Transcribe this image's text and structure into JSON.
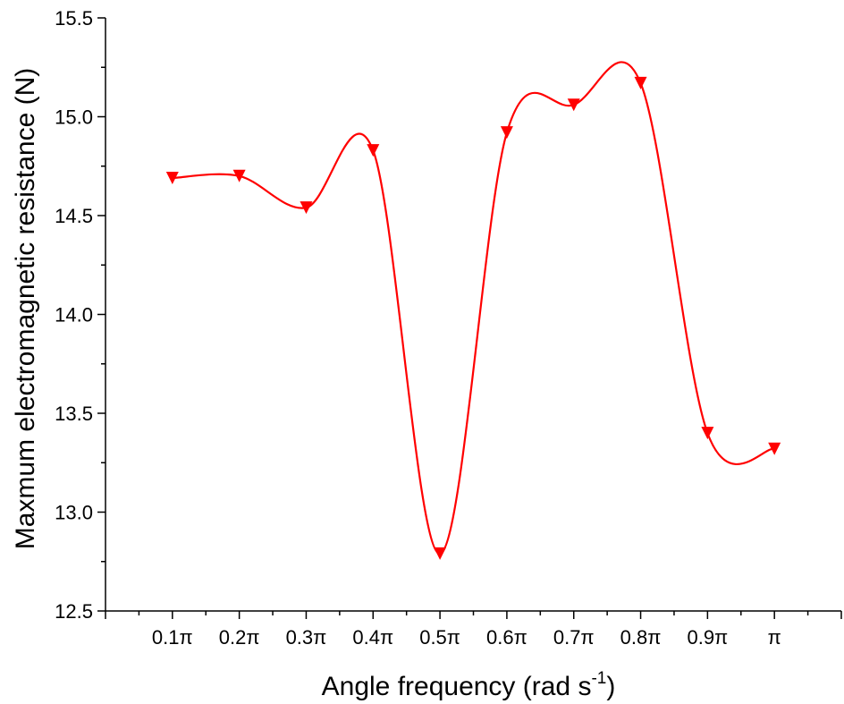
{
  "chart_data": {
    "type": "line",
    "title": "",
    "xlabel": {
      "text": "Angle frequency (rad s",
      "superscript": "-1",
      "suffix": ")"
    },
    "ylabel": "Maxmum electromagnetic resistance (N)",
    "categories": [
      "0.1π",
      "0.2π",
      "0.3π",
      "0.4π",
      "0.5π",
      "0.6π",
      "0.7π",
      "0.8π",
      "0.9π",
      "π"
    ],
    "series": [
      {
        "values": [
          14.69,
          14.7,
          14.54,
          14.83,
          12.79,
          14.92,
          15.06,
          15.17,
          13.4,
          13.32
        ],
        "color": "#ff0000",
        "marker": "triangle-down",
        "smooth": true
      }
    ],
    "ylim": [
      12.5,
      15.5
    ],
    "yticks": [
      "12.5",
      "13.0",
      "13.5",
      "14.0",
      "14.5",
      "15.0",
      "15.5"
    ],
    "xlim": [
      0,
      11
    ],
    "grid": false,
    "legend": "none"
  }
}
